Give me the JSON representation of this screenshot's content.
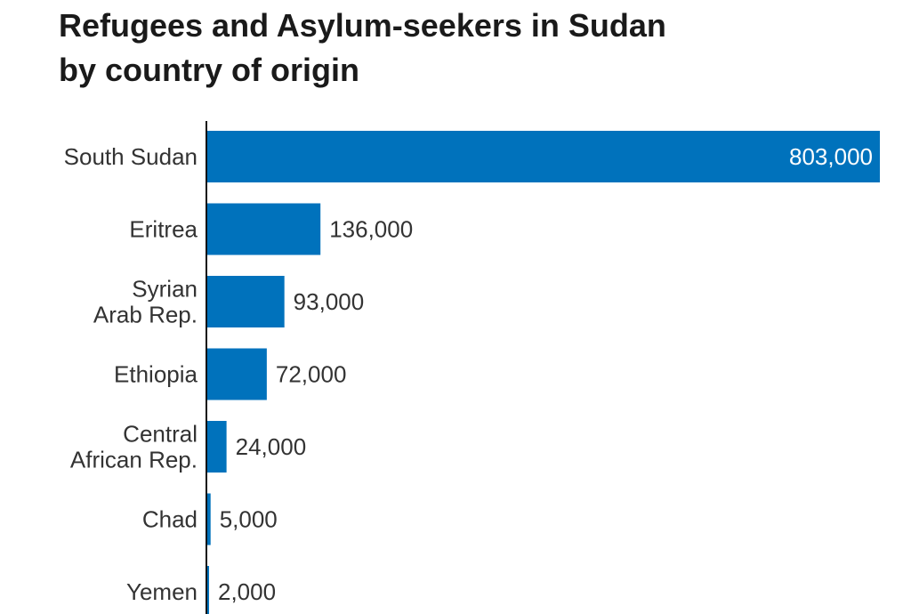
{
  "header": {
    "title_line1": "Refugees and Asylum-seekers in Sudan",
    "title_line2": "by country of origin"
  },
  "chart_data": {
    "type": "bar",
    "orientation": "horizontal",
    "title": "Refugees and Asylum-seekers in Sudan by country of origin",
    "categories": [
      [
        "South Sudan"
      ],
      [
        "Eritrea"
      ],
      [
        "Syrian",
        "Arab Rep."
      ],
      [
        "Ethiopia"
      ],
      [
        "Central",
        "African Rep."
      ],
      [
        "Chad"
      ],
      [
        "Yemen"
      ]
    ],
    "values": [
      803000,
      136000,
      93000,
      72000,
      24000,
      5000,
      2000
    ],
    "value_labels": [
      "803,000",
      "136,000",
      "93,000",
      "72,000",
      "24,000",
      "5,000",
      "2,000"
    ],
    "xlim": [
      0,
      803000
    ],
    "bar_color": "#0072bc",
    "label_color": "#333333",
    "inside_label_color": "#ffffff",
    "grid": false,
    "legend": "none"
  }
}
